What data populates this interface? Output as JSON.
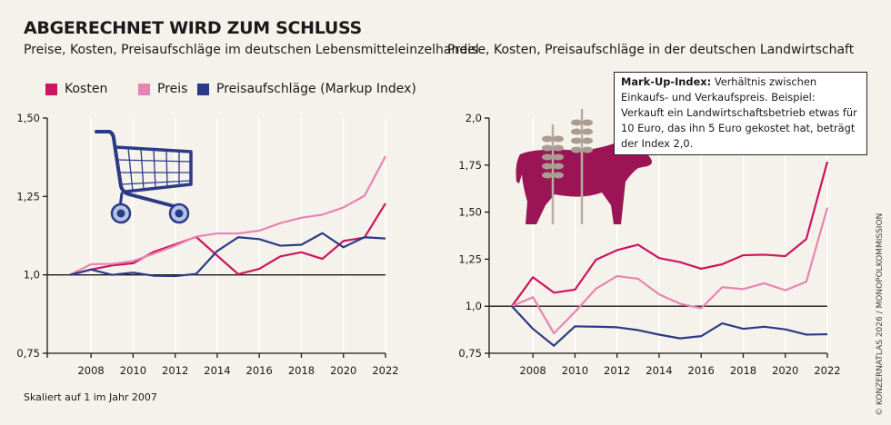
{
  "title": "ABGERECHNET WIRD ZUM SCHLUSS",
  "note": "Skaliert auf 1 im Jahr 2007",
  "credit": "© KONZERNATLAS 2026 / MONOPOLKOMMISSION",
  "infobox": {
    "term": "Mark-Up-Index:",
    "text": " Verhältnis zwischen Einkaufs- und Verkaufspreis. Beispiel: Verkauft ein Landwirtschaftsbetrieb etwas für 10 Euro, das ihn 5 Euro gekostet hat, beträgt der Index 2,0."
  },
  "legend": [
    {
      "label": "Kosten",
      "color": "#cc1460"
    },
    {
      "label": "Preis",
      "color": "#e883b3"
    },
    {
      "label": "Preisaufschläge (Markup Index)",
      "color": "#2b3a86"
    }
  ],
  "icons": {
    "left": "shopping-cart-icon",
    "right": "cow-with-wheat-icon"
  },
  "chart_data": [
    {
      "type": "line",
      "title": "Preise, Kosten, Preisaufschläge im deutschen Lebensmitteleinzelhandel",
      "x": [
        2007,
        2008,
        2009,
        2010,
        2011,
        2012,
        2013,
        2014,
        2015,
        2016,
        2017,
        2018,
        2019,
        2020,
        2021,
        2022
      ],
      "xticks": [
        "2008",
        "2010",
        "2012",
        "2014",
        "2016",
        "2018",
        "2020",
        "2022"
      ],
      "yticks": [
        "0,75",
        "1,0",
        "1,25",
        "1,50"
      ],
      "ylim": [
        0.75,
        1.5
      ],
      "reference_line": 1.0,
      "grid": "vertical",
      "series": [
        {
          "name": "Kosten",
          "color": "#cc1460",
          "values": [
            1.0,
            1.017,
            1.03,
            1.037,
            1.074,
            1.097,
            1.121,
            1.061,
            1.002,
            1.019,
            1.059,
            1.072,
            1.051,
            1.108,
            1.119,
            1.228
          ]
        },
        {
          "name": "Preis",
          "color": "#e883b3",
          "values": [
            1.0,
            1.034,
            1.035,
            1.044,
            1.068,
            1.093,
            1.122,
            1.132,
            1.132,
            1.141,
            1.165,
            1.182,
            1.192,
            1.215,
            1.252,
            1.378
          ]
        },
        {
          "name": "Preisaufschläge (Markup Index)",
          "color": "#2b3a86",
          "values": [
            1.0,
            1.017,
            1.0,
            1.007,
            0.997,
            0.996,
            1.003,
            1.076,
            1.12,
            1.114,
            1.093,
            1.096,
            1.133,
            1.088,
            1.12,
            1.116
          ]
        }
      ]
    },
    {
      "type": "line",
      "title": "Preise, Kosten, Preisaufschläge in der deutschen Landwirtschaft",
      "x": [
        2007,
        2008,
        2009,
        2010,
        2011,
        2012,
        2013,
        2014,
        2015,
        2016,
        2017,
        2018,
        2019,
        2020,
        2021,
        2022
      ],
      "xticks": [
        "2008",
        "2010",
        "2012",
        "2014",
        "2016",
        "2018",
        "2020",
        "2022"
      ],
      "yticks": [
        "0,75",
        "1,0",
        "1,25",
        "1,50",
        "1,75",
        "2,0"
      ],
      "ylim": [
        0.75,
        2.0
      ],
      "reference_line": 1.0,
      "grid": "vertical",
      "series": [
        {
          "name": "Kosten",
          "color": "#cc1460",
          "values": [
            1.0,
            1.154,
            1.072,
            1.088,
            1.247,
            1.298,
            1.327,
            1.256,
            1.234,
            1.199,
            1.223,
            1.271,
            1.274,
            1.266,
            1.357,
            1.768
          ]
        },
        {
          "name": "Preis",
          "color": "#e883b3",
          "values": [
            1.0,
            1.048,
            0.856,
            0.97,
            1.093,
            1.16,
            1.146,
            1.063,
            1.013,
            0.989,
            1.101,
            1.091,
            1.122,
            1.085,
            1.13,
            1.524
          ]
        },
        {
          "name": "Preisaufschläge (Markup Index)",
          "color": "#2b3a86",
          "values": [
            1.0,
            0.88,
            0.79,
            0.893,
            0.891,
            0.888,
            0.873,
            0.849,
            0.829,
            0.841,
            0.909,
            0.88,
            0.891,
            0.877,
            0.849,
            0.851
          ]
        }
      ]
    }
  ]
}
